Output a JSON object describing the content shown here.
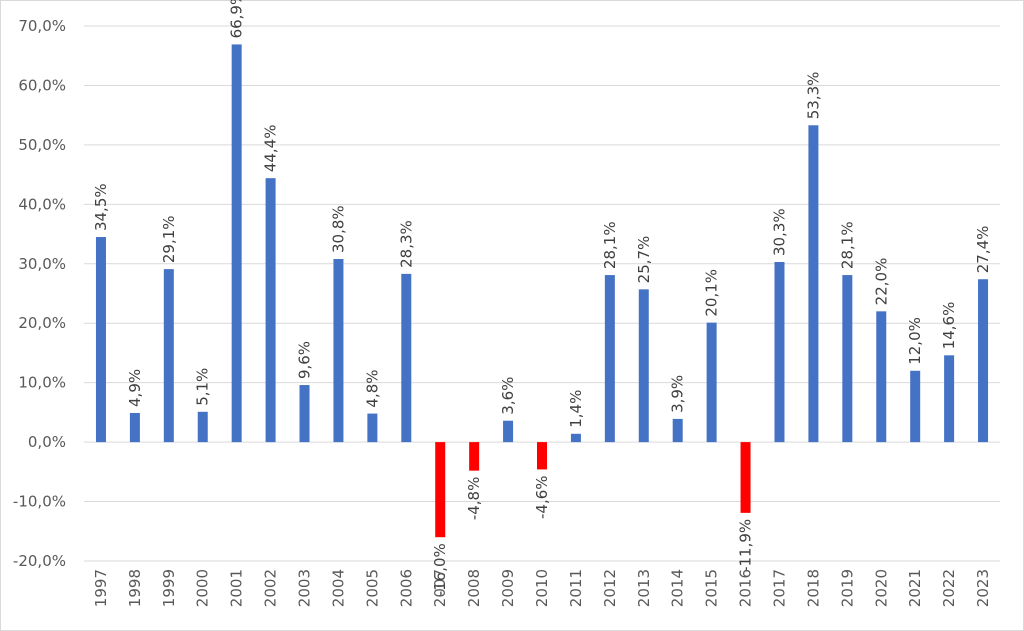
{
  "chart_data": {
    "type": "bar",
    "categories": [
      "1997",
      "1998",
      "1999",
      "2000",
      "2001",
      "2002",
      "2003",
      "2004",
      "2005",
      "2006",
      "2007",
      "2008",
      "2009",
      "2010",
      "2011",
      "2012",
      "2013",
      "2014",
      "2015",
      "2016",
      "2017",
      "2018",
      "2019",
      "2020",
      "2021",
      "2022",
      "2023"
    ],
    "values": [
      34.5,
      4.9,
      29.1,
      5.1,
      66.9,
      44.4,
      9.6,
      30.8,
      4.8,
      28.3,
      -16.0,
      -4.8,
      3.6,
      -4.6,
      1.4,
      28.1,
      25.7,
      3.9,
      20.1,
      -11.9,
      30.3,
      53.3,
      28.1,
      22.0,
      12.0,
      14.6,
      27.4
    ],
    "data_labels": [
      "34,5%",
      "4,9%",
      "29,1%",
      "5,1%",
      "66,9%",
      "44,4%",
      "9,6%",
      "30,8%",
      "4,8%",
      "28,3%",
      "-16,0%",
      "-4,8%",
      "3,6%",
      "-4,6%",
      "1,4%",
      "28,1%",
      "25,7%",
      "3,9%",
      "20,1%",
      "-11,9%",
      "30,3%",
      "53,3%",
      "28,1%",
      "22,0%",
      "12,0%",
      "14,6%",
      "27,4%"
    ],
    "y_ticks": [
      70,
      60,
      50,
      40,
      30,
      20,
      10,
      0,
      -10,
      -20
    ],
    "y_tick_labels": [
      "70,0%",
      "60,0%",
      "50,0%",
      "40,0%",
      "30,0%",
      "20,0%",
      "10,0%",
      "0,0%",
      "-10,0%",
      "-20,0%"
    ],
    "ylim": [
      -20,
      70
    ],
    "grid": true,
    "legend": "none",
    "title": "",
    "xlabel": "",
    "ylabel": "",
    "colors": {
      "positive": "#4472c4",
      "negative": "#ff0000"
    }
  }
}
